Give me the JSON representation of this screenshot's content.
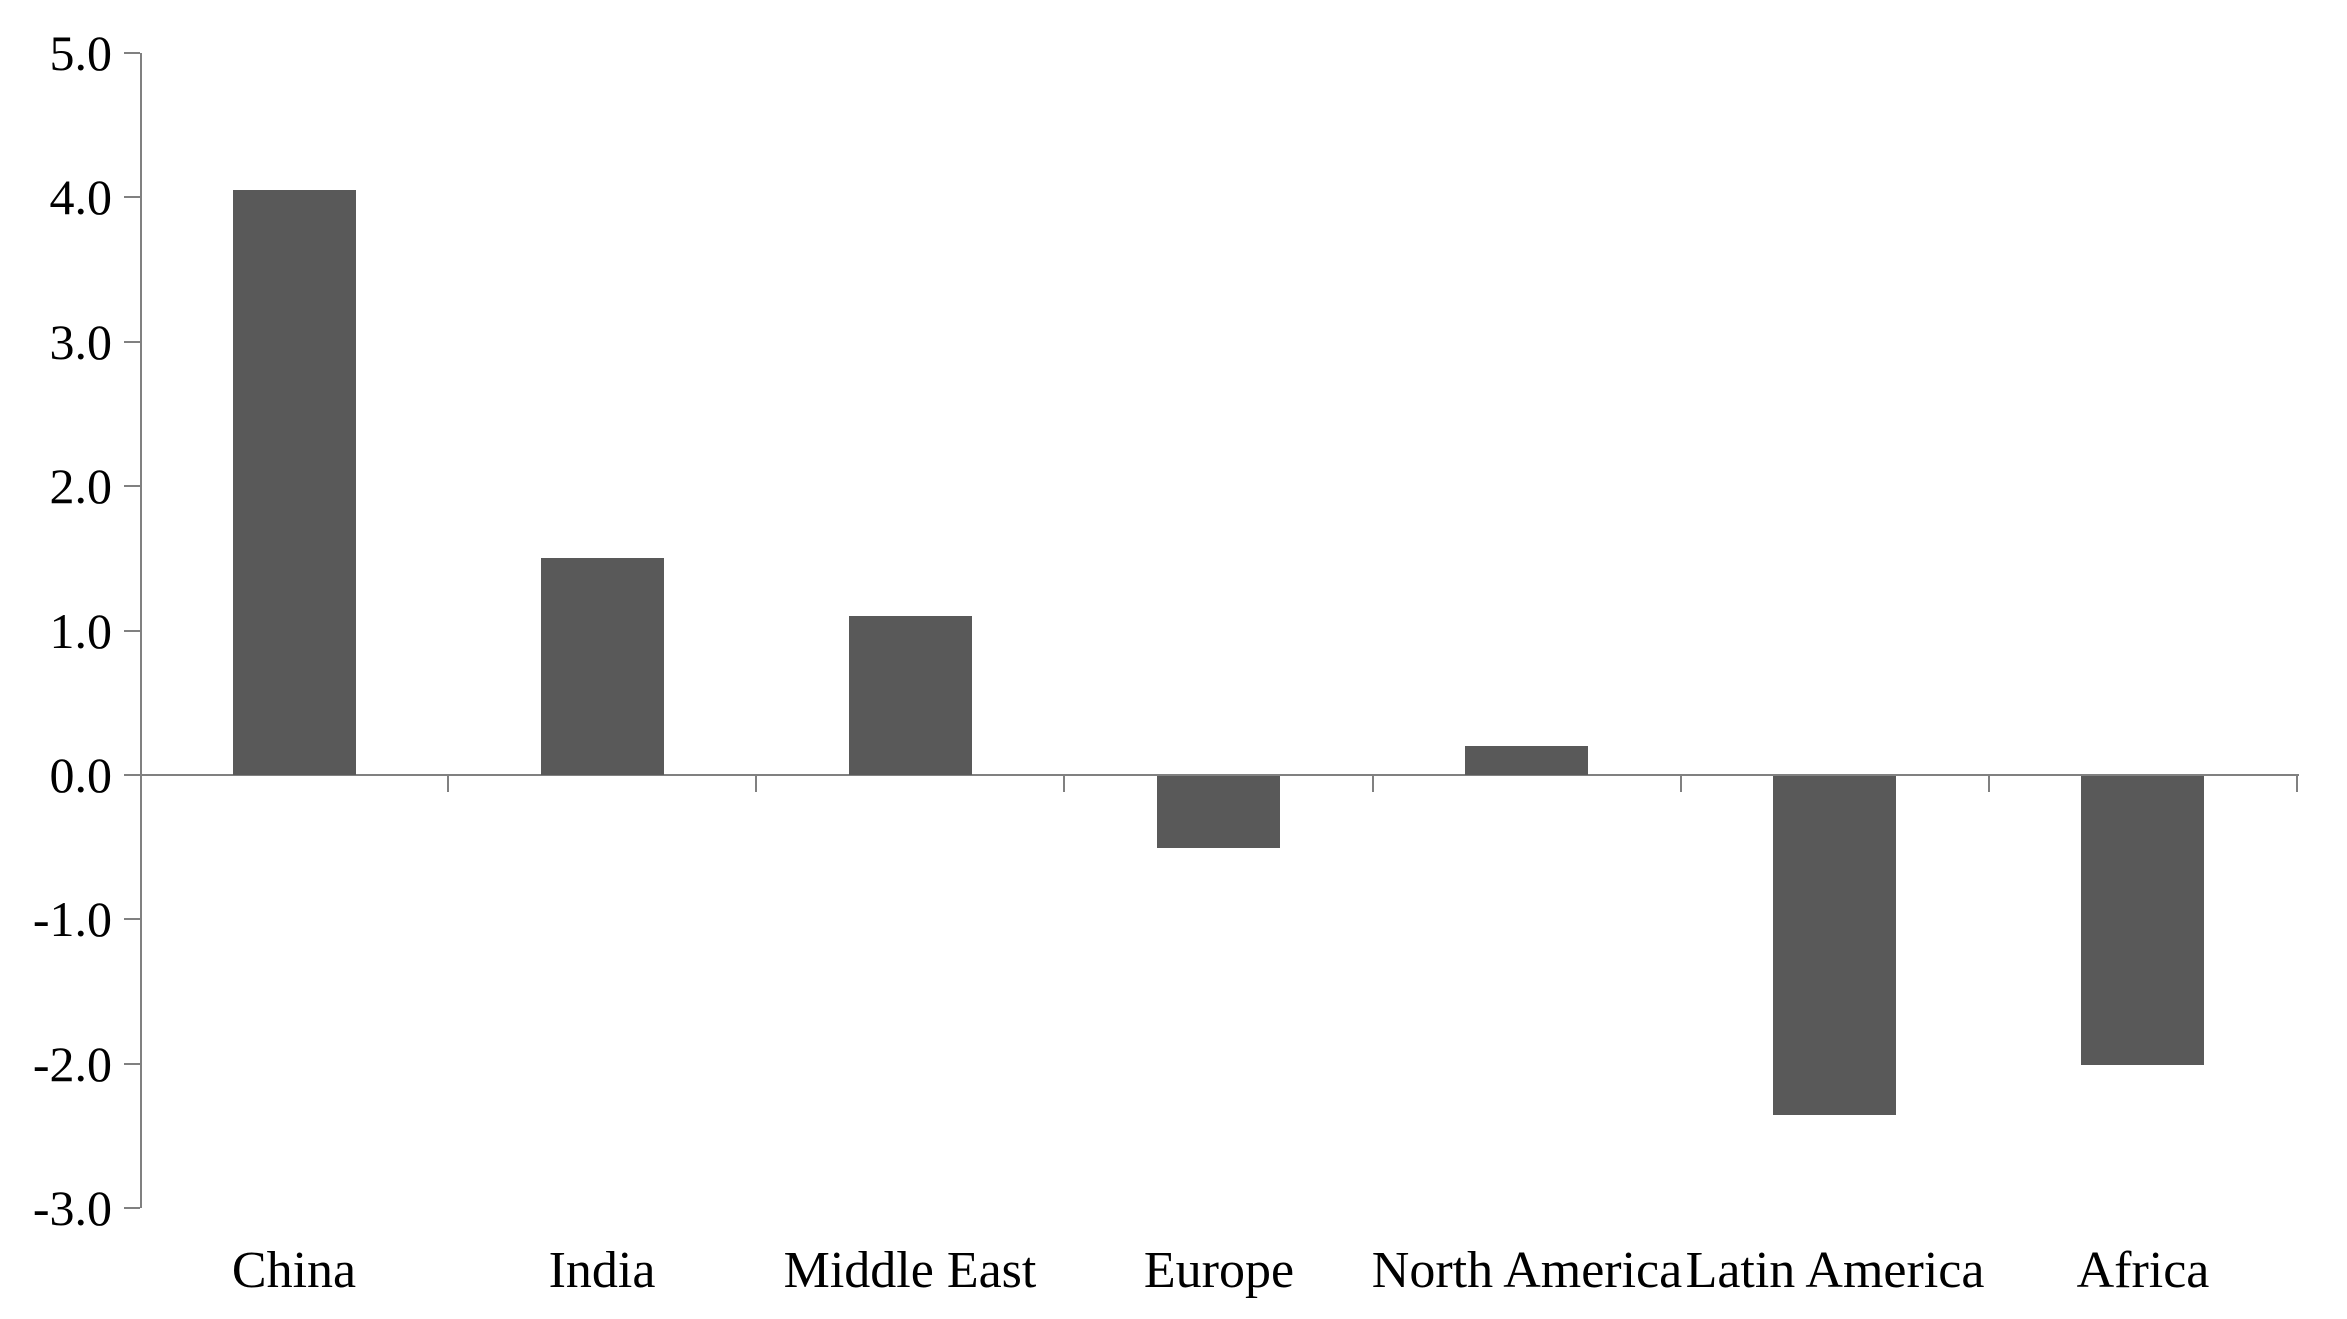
{
  "chart_data": {
    "type": "bar",
    "title": "",
    "xlabel": "",
    "ylabel": "",
    "categories": [
      "China",
      "India",
      "Middle East",
      "Europe",
      "North America",
      "Latin America",
      "Africa"
    ],
    "values": [
      4.05,
      1.5,
      1.1,
      -0.5,
      0.2,
      -2.35,
      -2.0
    ],
    "ylim": [
      -3.0,
      5.0
    ],
    "ytick_step": 1.0,
    "ytick_labels": [
      "5.0",
      "4.0",
      "3.0",
      "2.0",
      "1.0",
      "0.0",
      "-1.0",
      "-2.0",
      "-3.0"
    ],
    "grid": false,
    "legend": "none",
    "bar_color": "#595959",
    "axis_color": "#808080",
    "text_color": "#000000"
  }
}
